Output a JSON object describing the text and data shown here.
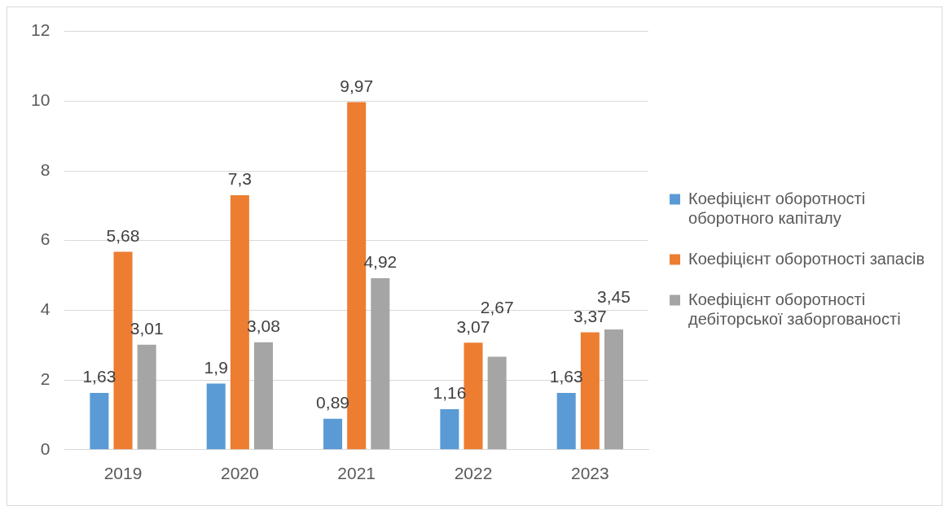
{
  "chart_data": {
    "type": "bar",
    "categories": [
      "2019",
      "2020",
      "2021",
      "2022",
      "2023"
    ],
    "series": [
      {
        "name": "Коефіцієнт оборотності оборотного капіталу",
        "color": "#5b9bd5",
        "values": [
          1.63,
          1.9,
          0.89,
          1.16,
          1.63
        ],
        "value_labels": [
          "1,63",
          "1,9",
          "0,89",
          "1,16",
          "1,63"
        ]
      },
      {
        "name": "Коефіцієнт оборотності запасів",
        "color": "#ed7d31",
        "values": [
          5.68,
          7.3,
          9.97,
          3.07,
          3.37
        ],
        "value_labels": [
          "5,68",
          "7,3",
          "9,97",
          "3,07",
          "3,37"
        ]
      },
      {
        "name": "Коефіцієнт оборотності дебіторської заборгованості",
        "color": "#a5a5a5",
        "values": [
          3.01,
          3.08,
          4.92,
          2.67,
          3.45
        ],
        "value_labels": [
          "3,01",
          "3,08",
          "4,92",
          "2,67",
          "3,45"
        ]
      }
    ],
    "ylim": [
      0,
      12
    ],
    "yticks": [
      0,
      2,
      4,
      6,
      8,
      10,
      12
    ],
    "grid": "y",
    "legend": "right"
  }
}
